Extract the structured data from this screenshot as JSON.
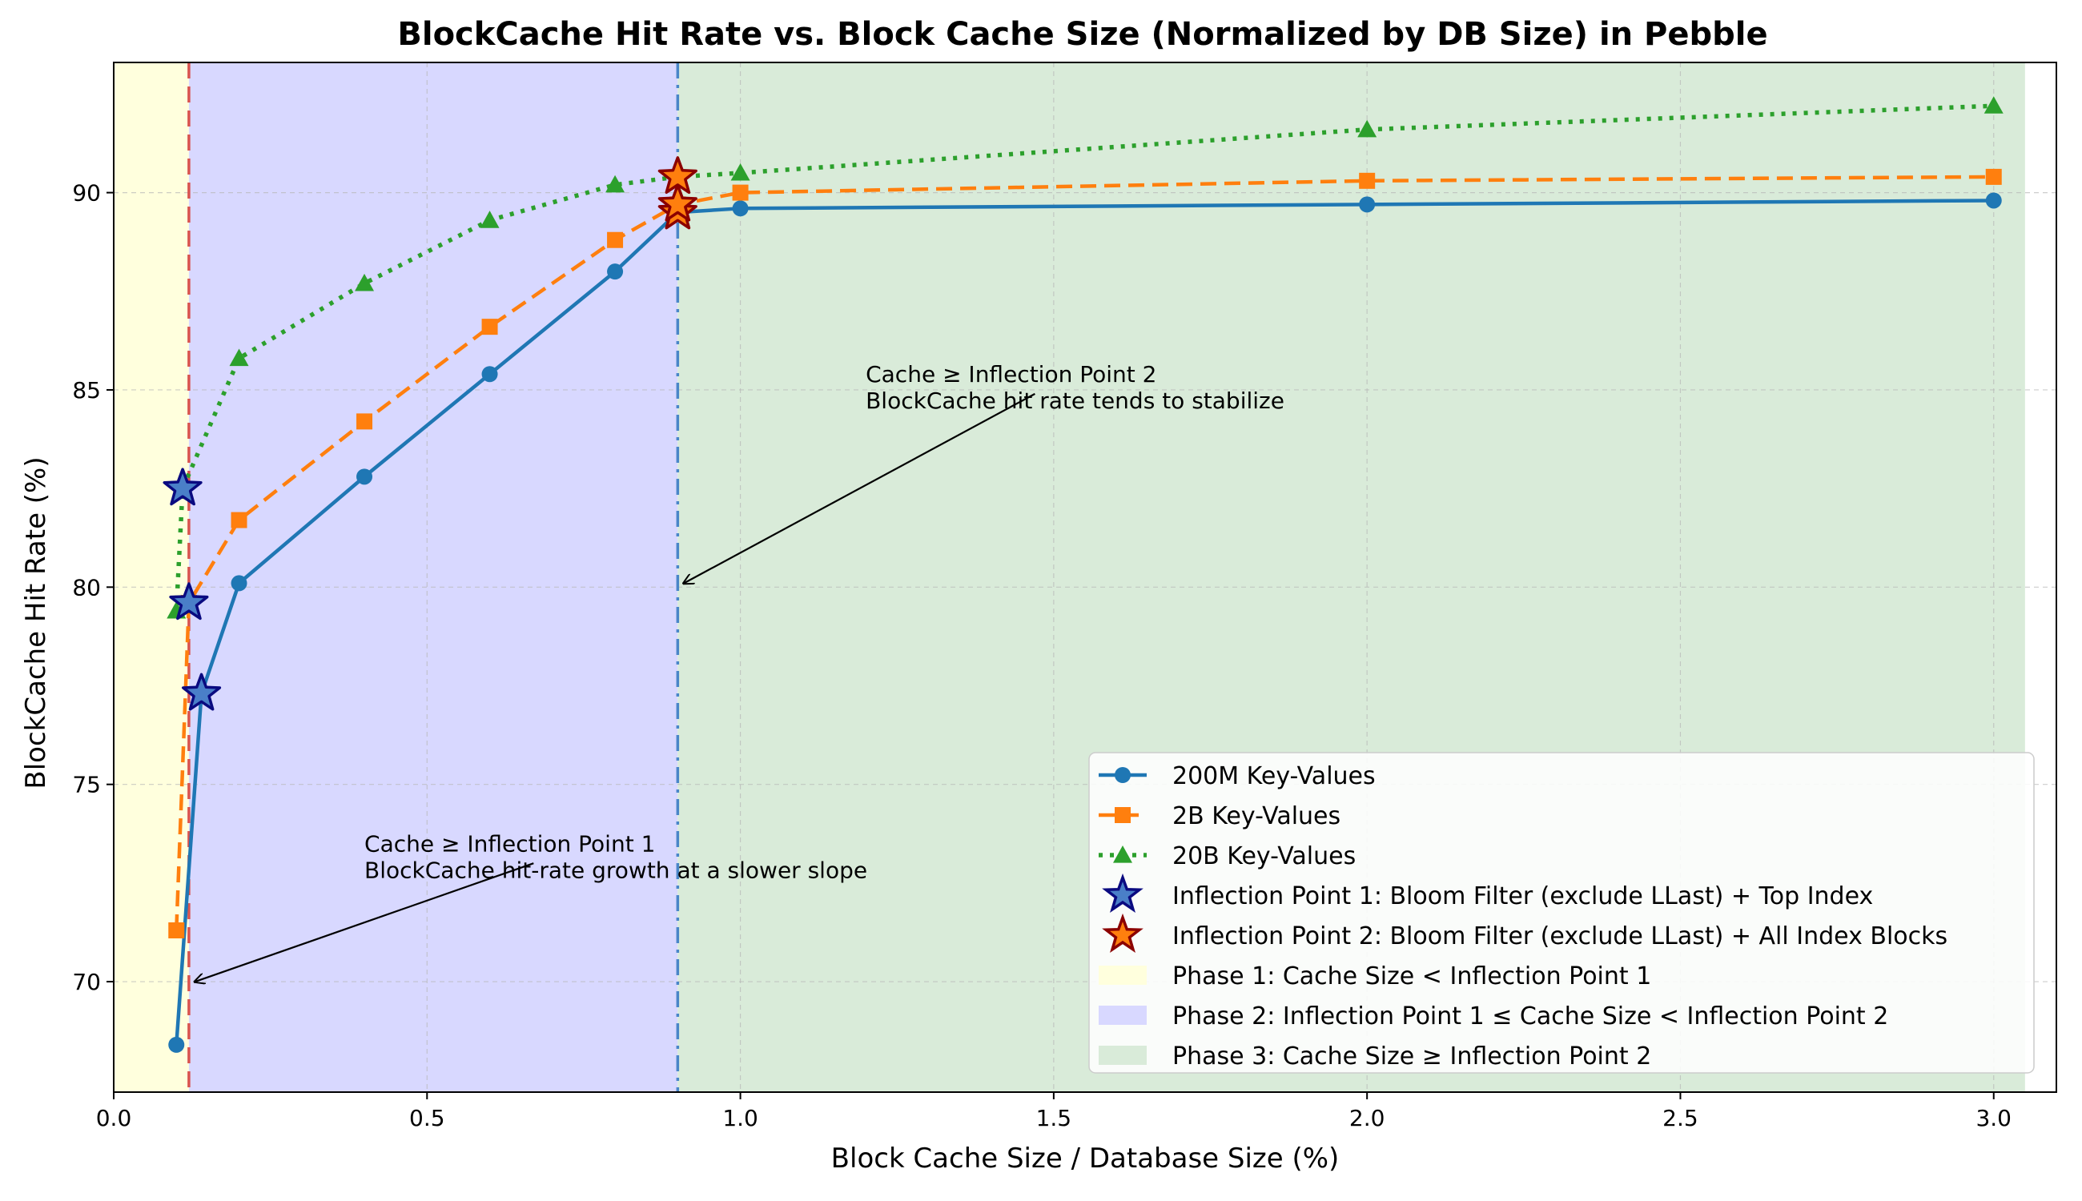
{
  "chart_data": {
    "type": "line",
    "title": "BlockCache Hit Rate vs. Block Cache Size (Normalized by DB Size) in Pebble",
    "xlabel": "Block Cache Size / Database Size (%)",
    "ylabel": "BlockCache Hit Rate (%)",
    "xlim": [
      0.0,
      3.1
    ],
    "ylim": [
      67.2,
      93.3
    ],
    "xticks": [
      0.0,
      0.5,
      1.0,
      1.5,
      2.0,
      2.5,
      3.0
    ],
    "xtick_labels": [
      "0.0",
      "0.5",
      "1.0",
      "1.5",
      "2.0",
      "2.5",
      "3.0"
    ],
    "yticks": [
      70,
      75,
      80,
      85,
      90
    ],
    "ytick_labels": [
      "70",
      "75",
      "80",
      "85",
      "90"
    ],
    "grid": true,
    "legend_position": "bottom-right",
    "series": [
      {
        "name": "200M Key-Values",
        "color": "#1f77b4",
        "line_style": "solid",
        "marker": "circle",
        "x": [
          0.1,
          0.14,
          0.2,
          0.4,
          0.6,
          0.8,
          0.9,
          1.0,
          2.0,
          3.0
        ],
        "y": [
          68.4,
          77.3,
          80.1,
          82.8,
          85.4,
          88.0,
          89.5,
          89.6,
          89.7,
          89.8
        ]
      },
      {
        "name": "2B Key-Values",
        "color": "#ff7f0e",
        "line_style": "dashed",
        "marker": "square",
        "x": [
          0.1,
          0.12,
          0.2,
          0.4,
          0.6,
          0.8,
          0.9,
          1.0,
          2.0,
          3.0
        ],
        "y": [
          71.3,
          79.6,
          81.7,
          84.2,
          86.6,
          88.8,
          89.7,
          90.0,
          90.3,
          90.4
        ]
      },
      {
        "name": "20B Key-Values",
        "color": "#2ca02c",
        "line_style": "dotted",
        "marker": "triangle",
        "x": [
          0.1,
          0.11,
          0.2,
          0.4,
          0.6,
          0.8,
          0.9,
          1.0,
          2.0,
          3.0
        ],
        "y": [
          79.4,
          82.5,
          85.8,
          87.7,
          89.3,
          90.2,
          90.4,
          90.5,
          91.6,
          92.2
        ]
      }
    ],
    "inflection_points_1": {
      "name": "Inflection Point 1: Bloom Filter (exclude LLast) + Top Index",
      "fill_color": "#4a7fc8",
      "edge_color": "#0a0a80",
      "points": [
        {
          "x": 0.14,
          "y": 77.3
        },
        {
          "x": 0.12,
          "y": 79.6
        },
        {
          "x": 0.11,
          "y": 82.5
        }
      ]
    },
    "inflection_points_2": {
      "name": "Inflection Point 2: Bloom Filter (exclude LLast) + All Index Blocks",
      "fill_color": "#ff7f0e",
      "edge_color": "#8b0000",
      "points": [
        {
          "x": 0.9,
          "y": 89.5
        },
        {
          "x": 0.9,
          "y": 89.7
        },
        {
          "x": 0.9,
          "y": 90.4
        }
      ]
    },
    "phases": [
      {
        "name": "Phase 1: Cache Size < Inflection Point 1",
        "x_start": 0.0,
        "x_end": 0.12,
        "color": "#ffffdd"
      },
      {
        "name": "Phase 2: Inflection Point 1 ≤ Cache Size < Inflection Point 2",
        "x_start": 0.12,
        "x_end": 0.9,
        "color": "#d8d8ff"
      },
      {
        "name": "Phase 3: Cache Size ≥ Inflection Point 2",
        "x_start": 0.9,
        "x_end": 3.05,
        "color": "#d9ebd9"
      }
    ],
    "vertical_lines": [
      {
        "x": 0.12,
        "style": "dashed",
        "color": "#d9534f"
      },
      {
        "x": 0.9,
        "style": "dashdot",
        "color": "#4a86c8"
      }
    ],
    "annotations": [
      {
        "lines": [
          "Cache ≥ Inflection Point 2",
          "BlockCache hit rate tends to stabilize"
        ],
        "text_at": {
          "x": 1.2,
          "y": 85.2
        },
        "arrow_from": {
          "x": 1.47,
          "y": 84.9
        },
        "arrow_to": {
          "x": 0.91,
          "y": 80.1
        }
      },
      {
        "lines": [
          "Cache ≥ Inflection Point 1",
          "BlockCache hit-rate growth at a slower slope"
        ],
        "text_at": {
          "x": 0.4,
          "y": 73.3
        },
        "arrow_from": {
          "x": 0.67,
          "y": 73.0
        },
        "arrow_to": {
          "x": 0.13,
          "y": 70.0
        }
      }
    ]
  }
}
